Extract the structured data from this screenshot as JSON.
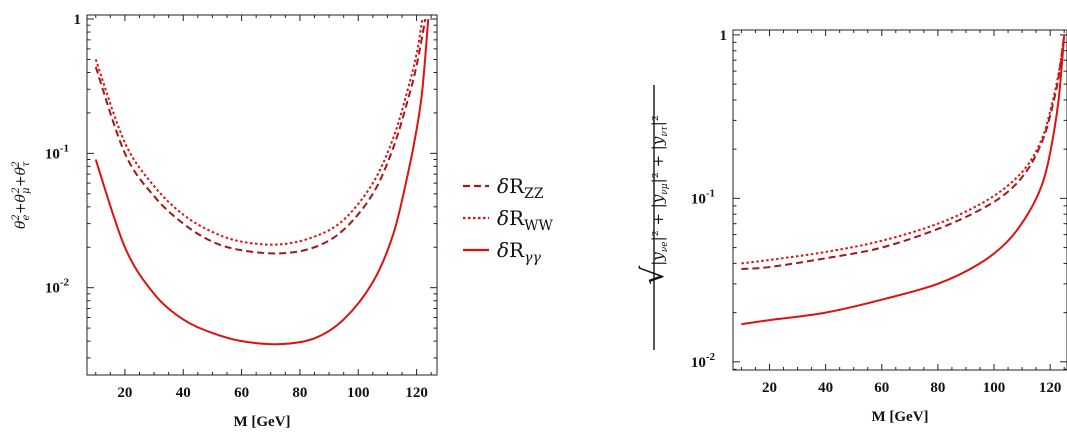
{
  "colors": {
    "zz": "#a01818",
    "ww": "#e01010",
    "gg": "#e01010"
  },
  "legend": {
    "items": [
      {
        "key": "zz",
        "label": "δR_ZZ",
        "dash": "dashed"
      },
      {
        "key": "ww",
        "label": "δR_WW",
        "dash": "dotted"
      },
      {
        "key": "gg",
        "label": "δR_γγ",
        "dash": "solid"
      }
    ]
  },
  "chart_data": [
    {
      "type": "line",
      "xlabel": "M [GeV]",
      "ylabel": "θ_e² + θ_μ² + θ_τ²",
      "xlim": [
        7,
        127
      ],
      "ylim_log10": [
        -2.65,
        0.03
      ],
      "yscale": "log",
      "xticks": [
        20,
        40,
        60,
        80,
        100,
        120
      ],
      "yticks": [
        {
          "value": 1,
          "label": "1"
        },
        {
          "value": 0.1,
          "label": "10",
          "exp": "-1"
        },
        {
          "value": 0.01,
          "label": "10",
          "exp": "-2"
        }
      ],
      "series": [
        {
          "name": "δR_ZZ",
          "key": "zz",
          "x": [
            10,
            20,
            30,
            40,
            50,
            60,
            73,
            85,
            95,
            105,
            112,
            117,
            120,
            123
          ],
          "y": [
            0.44,
            0.1,
            0.048,
            0.03,
            0.022,
            0.019,
            0.018,
            0.02,
            0.027,
            0.05,
            0.11,
            0.25,
            0.45,
            1.0
          ]
        },
        {
          "name": "δR_WW",
          "key": "ww",
          "x": [
            10,
            20,
            30,
            40,
            50,
            60,
            73,
            85,
            95,
            105,
            112,
            117,
            120,
            122
          ],
          "y": [
            0.5,
            0.12,
            0.057,
            0.035,
            0.026,
            0.022,
            0.021,
            0.024,
            0.032,
            0.06,
            0.13,
            0.3,
            0.55,
            1.0
          ]
        },
        {
          "name": "δR_γγ",
          "key": "gg",
          "x": [
            10,
            20,
            30,
            40,
            50,
            60,
            73,
            85,
            95,
            105,
            112,
            117,
            120,
            122,
            124
          ],
          "y": [
            0.09,
            0.02,
            0.009,
            0.0058,
            0.0046,
            0.004,
            0.0038,
            0.0042,
            0.0058,
            0.011,
            0.025,
            0.07,
            0.15,
            0.3,
            1.0
          ]
        }
      ]
    },
    {
      "type": "line",
      "xlabel": "M [GeV]",
      "ylabel": "√(|y_νe|² + |y_νμ|² + |y_ντ|²)",
      "xlim": [
        7,
        126
      ],
      "ylim_log10": [
        -2.05,
        0.03
      ],
      "yscale": "log",
      "xticks": [
        20,
        40,
        60,
        80,
        100,
        120
      ],
      "yticks": [
        {
          "value": 1,
          "label": "1"
        },
        {
          "value": 0.1,
          "label": "10",
          "exp": "-1"
        },
        {
          "value": 0.01,
          "label": "10",
          "exp": "-2"
        }
      ],
      "series": [
        {
          "name": "δR_ZZ",
          "key": "zz",
          "x": [
            10,
            20,
            40,
            60,
            80,
            95,
            105,
            112,
            117,
            120,
            123,
            125
          ],
          "y": [
            0.037,
            0.038,
            0.043,
            0.05,
            0.065,
            0.085,
            0.11,
            0.15,
            0.22,
            0.32,
            0.55,
            1.0
          ]
        },
        {
          "name": "δR_WW",
          "key": "ww",
          "x": [
            10,
            20,
            40,
            60,
            80,
            95,
            105,
            112,
            117,
            120,
            123,
            125
          ],
          "y": [
            0.04,
            0.042,
            0.047,
            0.055,
            0.07,
            0.092,
            0.12,
            0.16,
            0.23,
            0.34,
            0.58,
            1.0
          ]
        },
        {
          "name": "δR_γγ",
          "key": "gg",
          "x": [
            10,
            20,
            40,
            60,
            80,
            95,
            105,
            112,
            117,
            120,
            123,
            125
          ],
          "y": [
            0.017,
            0.018,
            0.02,
            0.024,
            0.03,
            0.04,
            0.055,
            0.08,
            0.12,
            0.19,
            0.4,
            1.0
          ]
        }
      ]
    }
  ]
}
